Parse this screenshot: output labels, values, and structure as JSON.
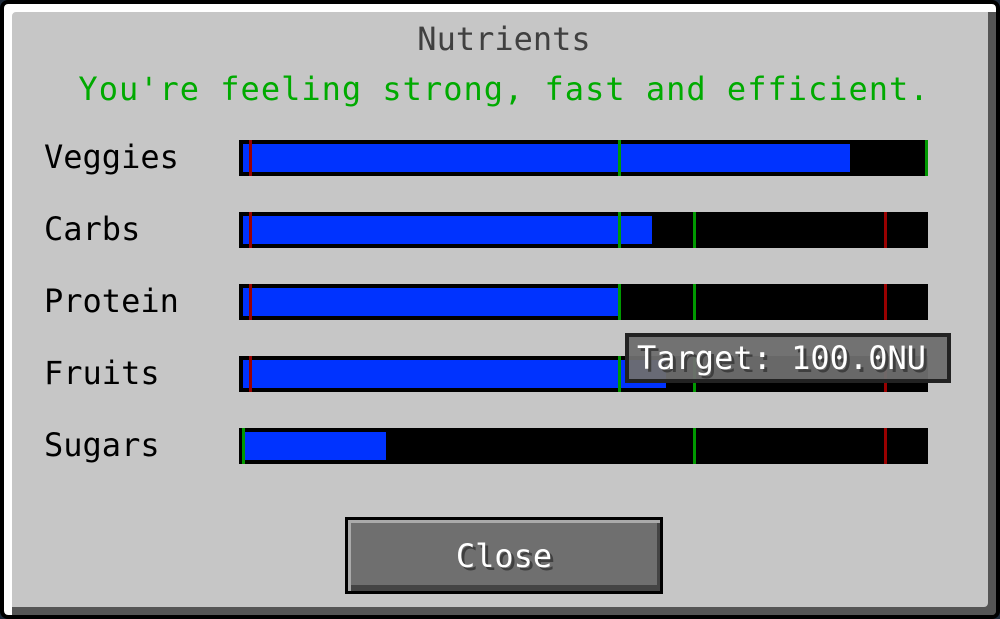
{
  "title": "Nutrients",
  "status": "You're feeling strong, fast and efficient.",
  "colors": {
    "fill": "#0033ff",
    "good_marker": "#009900",
    "bad_marker": "#990000",
    "status": "#00aa00"
  },
  "nutrients": [
    {
      "label": "Veggies",
      "fill": 0.89,
      "markers": [
        {
          "pos": 0.01,
          "type": "bad"
        },
        {
          "pos": 0.55,
          "type": "good"
        },
        {
          "pos": 1.0,
          "type": "good"
        }
      ]
    },
    {
      "label": "Carbs",
      "fill": 0.6,
      "markers": [
        {
          "pos": 0.01,
          "type": "bad"
        },
        {
          "pos": 0.55,
          "type": "good"
        },
        {
          "pos": 0.66,
          "type": "good"
        },
        {
          "pos": 0.94,
          "type": "bad"
        }
      ]
    },
    {
      "label": "Protein",
      "fill": 0.55,
      "markers": [
        {
          "pos": 0.01,
          "type": "bad"
        },
        {
          "pos": 0.55,
          "type": "good"
        },
        {
          "pos": 0.66,
          "type": "good"
        },
        {
          "pos": 0.94,
          "type": "bad"
        }
      ]
    },
    {
      "label": "Fruits",
      "fill": 0.62,
      "markers": [
        {
          "pos": 0.01,
          "type": "bad"
        },
        {
          "pos": 0.55,
          "type": "good"
        },
        {
          "pos": 0.66,
          "type": "good"
        },
        {
          "pos": 0.94,
          "type": "bad"
        }
      ]
    },
    {
      "label": "Sugars",
      "fill": 0.21,
      "markers": [
        {
          "pos": 0.0,
          "type": "good"
        },
        {
          "pos": 0.66,
          "type": "good"
        },
        {
          "pos": 0.94,
          "type": "bad"
        }
      ]
    }
  ],
  "tooltip": "Target: 100.0NU",
  "close_label": "Close"
}
